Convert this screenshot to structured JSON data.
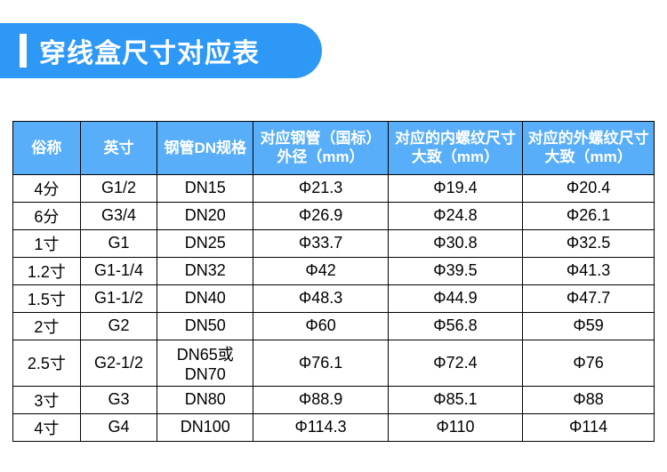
{
  "title": "穿线盒尺寸对应表",
  "table": {
    "header_bg": "#59aefa",
    "header_color": "#ffffff",
    "border_color": "#000000",
    "title_bg": "#2e98f7",
    "columns": [
      "俗称",
      "英寸",
      "钢管DN规格",
      "对应钢管（国标）\n外径（mm）",
      "对应的内螺纹尺寸\n大致（mm）",
      "对应的外螺纹尺寸\n大致（mm）"
    ],
    "rows": [
      [
        "4分",
        "G1/2",
        "DN15",
        "Φ21.3",
        "Φ19.4",
        "Φ20.4"
      ],
      [
        "6分",
        "G3/4",
        "DN20",
        "Φ26.9",
        "Φ24.8",
        "Φ26.1"
      ],
      [
        "1寸",
        "G1",
        "DN25",
        "Φ33.7",
        "Φ30.8",
        "Φ32.5"
      ],
      [
        "1.2寸",
        "G1-1/4",
        "DN32",
        "Φ42",
        "Φ39.5",
        "Φ41.3"
      ],
      [
        "1.5寸",
        "G1-1/2",
        "DN40",
        "Φ48.3",
        "Φ44.9",
        "Φ47.7"
      ],
      [
        "2寸",
        "G2",
        "DN50",
        "Φ60",
        "Φ56.8",
        "Φ59"
      ],
      [
        "2.5寸",
        "G2-1/2",
        "DN65或DN70",
        "Φ76.1",
        "Φ72.4",
        "Φ76"
      ],
      [
        "3寸",
        "G3",
        "DN80",
        "Φ88.9",
        "Φ85.1",
        "Φ88"
      ],
      [
        "4寸",
        "G4",
        "DN100",
        "Φ114.3",
        "Φ110",
        "Φ114"
      ]
    ]
  }
}
